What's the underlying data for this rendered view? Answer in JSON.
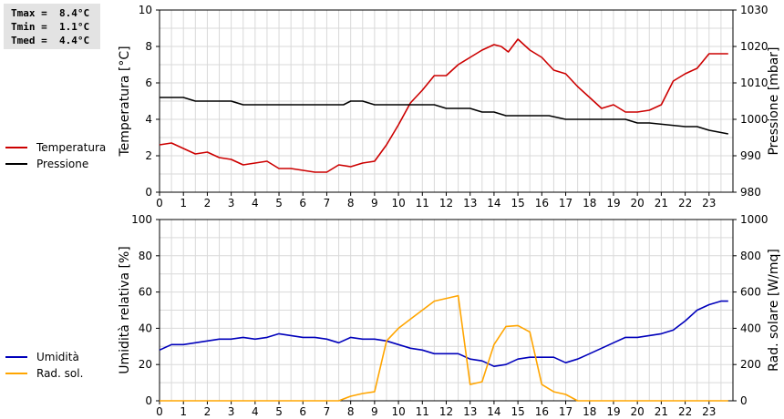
{
  "stats": {
    "tmax": "Tmax =  8.4°C",
    "tmin": "Tmin =  1.1°C",
    "tmed": "Tmed =  4.4°C"
  },
  "colors": {
    "temperature": "#cc0000",
    "pressure": "#000000",
    "humidity": "#0000bb",
    "radiation": "#ffa500",
    "grid": "#d9d9d9"
  },
  "chart_data": [
    {
      "type": "line",
      "xticks": [
        "0",
        "1",
        "2",
        "3",
        "4",
        "5",
        "6",
        "7",
        "8",
        "9",
        "10",
        "11",
        "12",
        "13",
        "14",
        "15",
        "16",
        "17",
        "18",
        "19",
        "20",
        "21",
        "22",
        "23"
      ],
      "xlim": [
        0,
        24
      ],
      "ylabel": "Temperatura [°C]",
      "ylim": [
        0,
        10
      ],
      "yticks": [
        "0",
        "2",
        "4",
        "6",
        "8",
        "10"
      ],
      "y2label": "Pressione [mbar]",
      "y2lim": [
        980,
        1030
      ],
      "y2ticks": [
        "980",
        "990",
        "1000",
        "1010",
        "1020",
        "1030"
      ],
      "grid": true,
      "legend_position": "left",
      "series": [
        {
          "name": "Temperatura",
          "axis": "left",
          "color": "#cc0000",
          "x": [
            0,
            0.5,
            1,
            1.5,
            2,
            2.5,
            3,
            3.5,
            4,
            4.5,
            5,
            5.5,
            6,
            6.5,
            7,
            7.5,
            8,
            8.5,
            9,
            9.5,
            10,
            10.5,
            11,
            11.5,
            12,
            12.5,
            13,
            13.5,
            14,
            14.3,
            14.6,
            15,
            15.5,
            16,
            16.5,
            17,
            17.5,
            18,
            18.5,
            19,
            19.5,
            20,
            20.5,
            21,
            21.5,
            22,
            22.5,
            23,
            23.5,
            23.8
          ],
          "values": [
            2.6,
            2.7,
            2.4,
            2.1,
            2.2,
            1.9,
            1.8,
            1.5,
            1.6,
            1.7,
            1.3,
            1.3,
            1.2,
            1.1,
            1.1,
            1.5,
            1.4,
            1.6,
            1.7,
            2.6,
            3.7,
            4.9,
            5.6,
            6.4,
            6.4,
            7.0,
            7.4,
            7.8,
            8.1,
            8.0,
            7.7,
            8.4,
            7.8,
            7.4,
            6.7,
            6.5,
            5.8,
            5.2,
            4.6,
            4.8,
            4.4,
            4.4,
            4.5,
            4.8,
            6.1,
            6.5,
            6.8,
            7.6,
            7.6,
            7.6
          ]
        },
        {
          "name": "Pressione",
          "axis": "right",
          "color": "#000000",
          "x": [
            0,
            1,
            1.5,
            3,
            3.5,
            7.7,
            8,
            8.5,
            9,
            11.5,
            12,
            13,
            13.5,
            14,
            14.5,
            16.3,
            17,
            19.5,
            20,
            20.5,
            22,
            22.5,
            23,
            23.8
          ],
          "values": [
            1006,
            1006,
            1005,
            1005,
            1004,
            1004,
            1005,
            1005,
            1004,
            1004,
            1003,
            1003,
            1002,
            1002,
            1001,
            1001,
            1000,
            1000,
            999,
            999,
            998,
            998,
            997,
            996
          ]
        }
      ]
    },
    {
      "type": "line",
      "xticks": [
        "0",
        "1",
        "2",
        "3",
        "4",
        "5",
        "6",
        "7",
        "8",
        "9",
        "10",
        "11",
        "12",
        "13",
        "14",
        "15",
        "16",
        "17",
        "18",
        "19",
        "20",
        "21",
        "22",
        "23"
      ],
      "xlim": [
        0,
        24
      ],
      "ylabel": "Umidità relativa [%]",
      "ylim": [
        0,
        100
      ],
      "yticks": [
        "0",
        "20",
        "40",
        "60",
        "80",
        "100"
      ],
      "y2label": "Rad. solare [W/mq]",
      "y2lim": [
        0,
        1000
      ],
      "y2ticks": [
        "0",
        "200",
        "400",
        "600",
        "800",
        "1000"
      ],
      "grid": true,
      "legend_position": "left",
      "series": [
        {
          "name": "Umidità",
          "axis": "left",
          "color": "#0000bb",
          "x": [
            0,
            0.5,
            1,
            1.5,
            2,
            2.5,
            3,
            3.5,
            4,
            4.5,
            5,
            5.5,
            6,
            6.5,
            7,
            7.5,
            8,
            8.5,
            9,
            9.5,
            10,
            10.5,
            11,
            11.5,
            12,
            12.5,
            13,
            13.5,
            14,
            14.5,
            15,
            15.5,
            16,
            16.5,
            17,
            17.5,
            18,
            18.5,
            19,
            19.5,
            20,
            20.5,
            21,
            21.5,
            22,
            22.5,
            23,
            23.5,
            23.8
          ],
          "values": [
            28,
            31,
            31,
            32,
            33,
            34,
            34,
            35,
            34,
            35,
            37,
            36,
            35,
            35,
            34,
            32,
            35,
            34,
            34,
            33,
            31,
            29,
            28,
            26,
            26,
            26,
            23,
            22,
            19,
            20,
            23,
            24,
            24,
            24,
            21,
            23,
            26,
            29,
            32,
            35,
            35,
            36,
            37,
            39,
            44,
            50,
            53,
            55,
            55
          ]
        },
        {
          "name": "Rad. sol.",
          "axis": "right",
          "color": "#ffa500",
          "x": [
            0,
            7.5,
            8,
            8.5,
            9,
            9.5,
            10,
            10.5,
            11,
            11.5,
            12,
            12.5,
            13,
            13.5,
            14,
            14.5,
            15,
            15.5,
            16,
            16.5,
            17,
            17.5,
            18,
            23.8
          ],
          "values": [
            0,
            0,
            25,
            40,
            50,
            330,
            400,
            450,
            500,
            550,
            565,
            580,
            90,
            105,
            310,
            410,
            415,
            380,
            90,
            50,
            35,
            0,
            0,
            0
          ]
        }
      ]
    }
  ]
}
